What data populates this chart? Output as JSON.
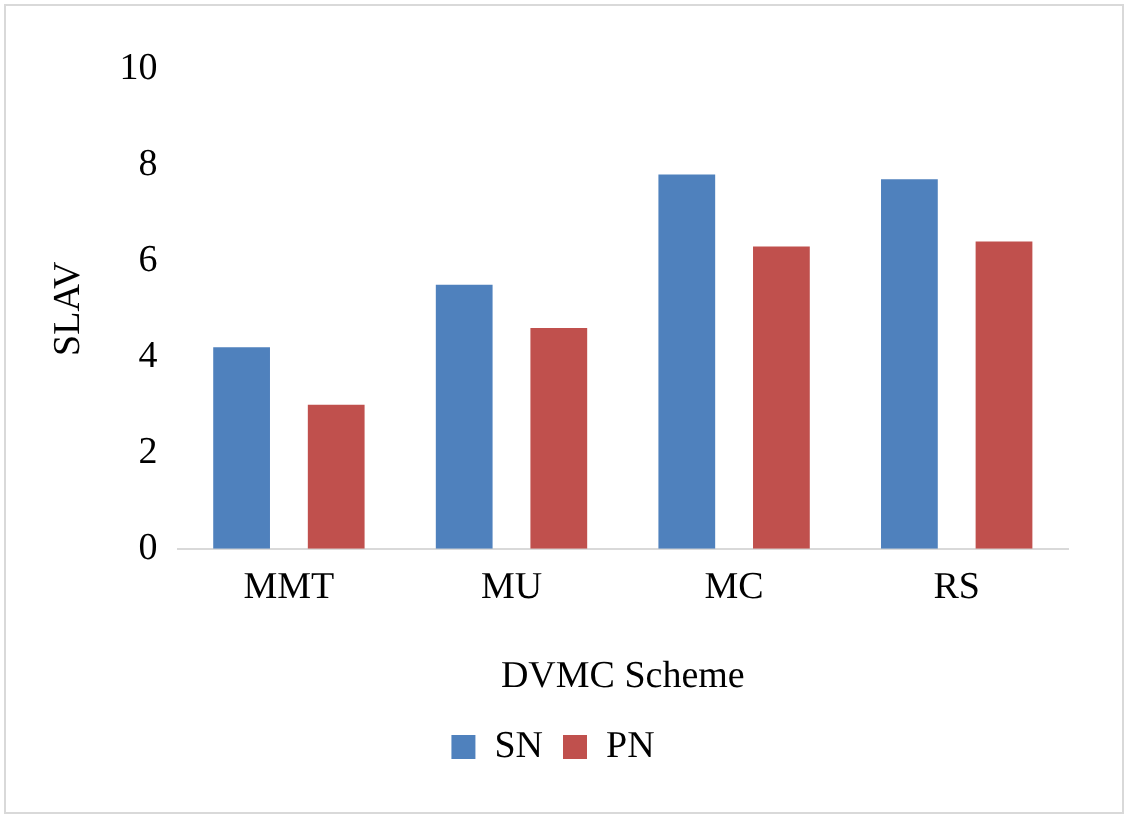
{
  "chart_data": {
    "type": "bar",
    "xlabel": "DVMC Scheme",
    "ylabel": "SLAV",
    "categories": [
      "MMT",
      "MU",
      "MC",
      "RS"
    ],
    "series": [
      {
        "name": "SN",
        "color": "#4f81bd",
        "values": [
          4.2,
          5.5,
          7.8,
          7.7
        ]
      },
      {
        "name": "PN",
        "color": "#c0504d",
        "values": [
          3.0,
          4.6,
          6.3,
          6.4
        ]
      }
    ],
    "ylim": [
      0,
      10
    ],
    "yticks": [
      0,
      2,
      4,
      6,
      8,
      10
    ],
    "grid": false,
    "legend": "bottom"
  }
}
